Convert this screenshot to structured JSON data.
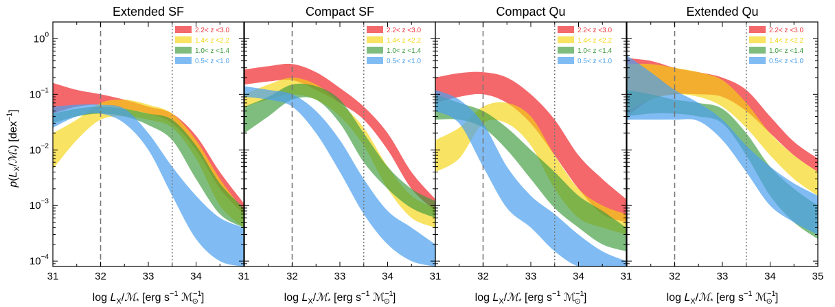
{
  "chart_data": {
    "type": "area",
    "ylabel": "p(L_X/M_*) [dex^-1]",
    "y_scale": "log",
    "ylim": [
      8e-05,
      2.0
    ],
    "y_ticks": [
      {
        "value": 1,
        "base": "10",
        "exp": "0"
      },
      {
        "value": 0.1,
        "base": "10",
        "exp": "−1"
      },
      {
        "value": 0.01,
        "base": "10",
        "exp": "−2"
      },
      {
        "value": 0.001,
        "base": "10",
        "exp": "−3"
      },
      {
        "value": 0.0001,
        "base": "10",
        "exp": "−4"
      }
    ],
    "xlabel": "log L_X/M_* [erg s^-1 M_sun^-1]",
    "legend_placement": "top-right",
    "series_styles": [
      {
        "name": "2.2< z <3.0",
        "color": "#f0353a",
        "opacity": 0.75
      },
      {
        "name": "1.4< z <2.2",
        "color": "#f5d410",
        "opacity": 0.65
      },
      {
        "name": "1.0< z <1.4",
        "color": "#3a9a3a",
        "opacity": 0.65
      },
      {
        "name": "0.5< z <1.0",
        "color": "#4aa0ee",
        "opacity": 0.7
      }
    ],
    "panels": [
      {
        "title": "Extended SF",
        "xlim": [
          31,
          35
        ],
        "x_tick_labels": [
          "31",
          "32",
          "33",
          "34",
          "31"
        ],
        "vlines": [
          {
            "x": 32.0,
            "style": "dashed"
          },
          {
            "x": 33.5,
            "style": "dotted"
          }
        ],
        "series": [
          {
            "name": "2.2< z <3.0",
            "x": [
              31.0,
              31.5,
              32.0,
              32.5,
              33.0,
              33.5,
              34.0,
              34.5,
              35.0
            ],
            "lower": [
              0.045,
              0.06,
              0.065,
              0.055,
              0.045,
              0.03,
              0.01,
              0.002,
              0.0007
            ],
            "upper": [
              0.16,
              0.12,
              0.1,
              0.08,
              0.06,
              0.045,
              0.018,
              0.004,
              0.0011
            ]
          },
          {
            "name": "1.4< z <2.2",
            "x": [
              31.0,
              31.5,
              32.0,
              32.5,
              33.0,
              33.5,
              34.0,
              34.5,
              35.0
            ],
            "lower": [
              0.0045,
              0.015,
              0.035,
              0.04,
              0.035,
              0.025,
              0.007,
              0.001,
              0.0004
            ],
            "upper": [
              0.02,
              0.035,
              0.07,
              0.08,
              0.065,
              0.045,
              0.015,
              0.003,
              0.0008
            ]
          },
          {
            "name": "1.0< z <1.4",
            "x": [
              31.0,
              31.5,
              32.0,
              32.5,
              33.0,
              33.5,
              34.0,
              34.5,
              35.0
            ],
            "lower": [
              0.03,
              0.04,
              0.045,
              0.04,
              0.028,
              0.015,
              0.003,
              0.0007,
              0.0004
            ],
            "upper": [
              0.045,
              0.055,
              0.06,
              0.055,
              0.045,
              0.035,
              0.012,
              0.0025,
              0.0009
            ]
          },
          {
            "name": "0.5< z <1.0",
            "x": [
              31.0,
              31.5,
              32.0,
              32.5,
              33.0,
              33.5,
              34.0,
              34.5,
              35.0
            ],
            "lower": [
              0.025,
              0.04,
              0.045,
              0.03,
              0.01,
              0.0015,
              0.00025,
              0.0001,
              8e-05
            ],
            "upper": [
              0.06,
              0.065,
              0.065,
              0.055,
              0.02,
              0.005,
              0.0015,
              0.0006,
              0.0004
            ]
          }
        ]
      },
      {
        "title": "Compact SF",
        "xlim": [
          31,
          35
        ],
        "x_tick_labels": [
          "",
          "32",
          "33",
          "34",
          "31"
        ],
        "vlines": [
          {
            "x": 32.0,
            "style": "dashed"
          },
          {
            "x": 33.5,
            "style": "dotted"
          }
        ],
        "series": [
          {
            "name": "2.2< z <3.0",
            "x": [
              31.0,
              31.5,
              32.0,
              32.5,
              33.0,
              33.5,
              34.0,
              34.5,
              35.0
            ],
            "lower": [
              0.15,
              0.17,
              0.18,
              0.12,
              0.07,
              0.035,
              0.01,
              0.002,
              0.0008
            ],
            "upper": [
              0.28,
              0.32,
              0.35,
              0.25,
              0.13,
              0.06,
              0.02,
              0.004,
              0.0013
            ]
          },
          {
            "name": "1.4< z <2.2",
            "x": [
              31.0,
              31.5,
              32.0,
              32.5,
              33.0,
              33.5,
              34.0,
              34.5,
              35.0
            ],
            "lower": [
              0.06,
              0.08,
              0.1,
              0.08,
              0.04,
              0.012,
              0.002,
              0.0006,
              0.0004
            ],
            "upper": [
              0.1,
              0.15,
              0.2,
              0.15,
              0.07,
              0.025,
              0.005,
              0.0015,
              0.0009
            ]
          },
          {
            "name": "1.0< z <1.4",
            "x": [
              31.0,
              31.5,
              32.0,
              32.5,
              33.0,
              33.5,
              34.0,
              34.5,
              35.0
            ],
            "lower": [
              0.02,
              0.04,
              0.08,
              0.08,
              0.03,
              0.006,
              0.002,
              0.0009,
              0.0006
            ],
            "upper": [
              0.06,
              0.09,
              0.15,
              0.14,
              0.08,
              0.02,
              0.005,
              0.002,
              0.0012
            ]
          },
          {
            "name": "0.5< z <1.0",
            "x": [
              31.0,
              31.5,
              32.0,
              32.5,
              33.0,
              33.5,
              34.0,
              34.5,
              35.0
            ],
            "lower": [
              0.09,
              0.08,
              0.06,
              0.02,
              0.004,
              0.0007,
              0.0002,
              0.0001,
              8e-05
            ],
            "upper": [
              0.14,
              0.12,
              0.1,
              0.05,
              0.015,
              0.003,
              0.0008,
              0.0004,
              0.0002
            ]
          }
        ]
      },
      {
        "title": "Compact Qu",
        "xlim": [
          31,
          35
        ],
        "x_tick_labels": [
          "",
          "32",
          "33",
          "34",
          "31"
        ],
        "vlines": [
          {
            "x": 32.0,
            "style": "dashed"
          },
          {
            "x": 33.5,
            "style": "dotted"
          }
        ],
        "series": [
          {
            "name": "2.2< z <3.0",
            "x": [
              31.0,
              31.5,
              32.0,
              32.5,
              33.0,
              33.5,
              34.0,
              34.5,
              35.0
            ],
            "lower": [
              0.07,
              0.09,
              0.1,
              0.07,
              0.03,
              0.008,
              0.002,
              0.0007,
              0.0005
            ],
            "upper": [
              0.2,
              0.24,
              0.25,
              0.2,
              0.1,
              0.035,
              0.008,
              0.003,
              0.0013
            ]
          },
          {
            "name": "1.4< z <2.2",
            "x": [
              31.0,
              31.5,
              32.0,
              32.5,
              33.0,
              33.5,
              34.0,
              34.5,
              35.0
            ],
            "lower": [
              0.004,
              0.007,
              0.03,
              0.03,
              0.012,
              0.002,
              0.0006,
              0.0004,
              0.0003
            ],
            "upper": [
              0.015,
              0.025,
              0.06,
              0.07,
              0.04,
              0.008,
              0.002,
              0.001,
              0.0007
            ]
          },
          {
            "name": "1.0< z <1.4",
            "x": [
              31.0,
              31.5,
              32.0,
              32.5,
              33.0,
              33.5,
              34.0,
              34.5,
              35.0
            ],
            "lower": [
              0.035,
              0.035,
              0.025,
              0.01,
              0.003,
              0.0009,
              0.0004,
              0.0002,
              0.00015
            ],
            "upper": [
              0.1,
              0.07,
              0.05,
              0.025,
              0.01,
              0.004,
              0.0015,
              0.0008,
              0.0004
            ]
          },
          {
            "name": "0.5< z <1.0",
            "x": [
              31.0,
              31.5,
              32.0,
              32.5,
              33.0,
              33.5,
              34.0,
              34.5,
              35.0
            ],
            "lower": [
              0.05,
              0.03,
              0.005,
              0.0009,
              0.0004,
              0.00015,
              8e-05,
              8e-05,
              8e-05
            ],
            "upper": [
              0.12,
              0.08,
              0.03,
              0.005,
              0.0015,
              0.0007,
              0.0003,
              0.00015,
              0.0001
            ]
          }
        ]
      },
      {
        "title": "Extended Qu",
        "xlim": [
          31,
          35
        ],
        "x_tick_labels": [
          "",
          "32",
          "33",
          "34",
          "35"
        ],
        "vlines": [
          {
            "x": 32.0,
            "style": "dashed"
          },
          {
            "x": 33.5,
            "style": "dotted"
          }
        ],
        "series": [
          {
            "name": "2.2< z <3.0",
            "x": [
              31.0,
              31.5,
              32.0,
              32.5,
              33.0,
              33.5,
              34.0,
              34.5,
              35.0
            ],
            "lower": [
              0.04,
              0.08,
              0.1,
              0.1,
              0.09,
              0.05,
              0.02,
              0.008,
              0.004
            ],
            "upper": [
              0.45,
              0.4,
              0.3,
              0.25,
              0.2,
              0.12,
              0.04,
              0.014,
              0.007
            ]
          },
          {
            "name": "1.4< z <2.2",
            "x": [
              31.0,
              31.5,
              32.0,
              32.5,
              33.0,
              33.5,
              34.0,
              34.5,
              35.0
            ],
            "lower": [
              0.05,
              0.08,
              0.1,
              0.09,
              0.06,
              0.025,
              0.008,
              0.003,
              0.0015
            ],
            "upper": [
              0.35,
              0.35,
              0.3,
              0.25,
              0.18,
              0.07,
              0.02,
              0.008,
              0.004
            ]
          },
          {
            "name": "1.0< z <1.4",
            "x": [
              31.0,
              31.5,
              32.0,
              32.5,
              33.0,
              33.5,
              34.0,
              34.5,
              35.0
            ],
            "lower": [
              0.04,
              0.045,
              0.045,
              0.04,
              0.03,
              0.008,
              0.0015,
              0.0005,
              0.00025
            ],
            "upper": [
              0.12,
              0.1,
              0.08,
              0.07,
              0.055,
              0.02,
              0.005,
              0.002,
              0.001
            ]
          },
          {
            "name": "0.5< z <1.0",
            "x": [
              31.0,
              31.5,
              32.0,
              32.5,
              33.0,
              33.5,
              34.0,
              34.5,
              35.0
            ],
            "lower": [
              0.035,
              0.035,
              0.035,
              0.033,
              0.015,
              0.004,
              0.001,
              0.0005,
              0.0003
            ],
            "upper": [
              0.5,
              0.25,
              0.12,
              0.07,
              0.035,
              0.012,
              0.005,
              0.0025,
              0.0015
            ]
          }
        ]
      }
    ]
  }
}
